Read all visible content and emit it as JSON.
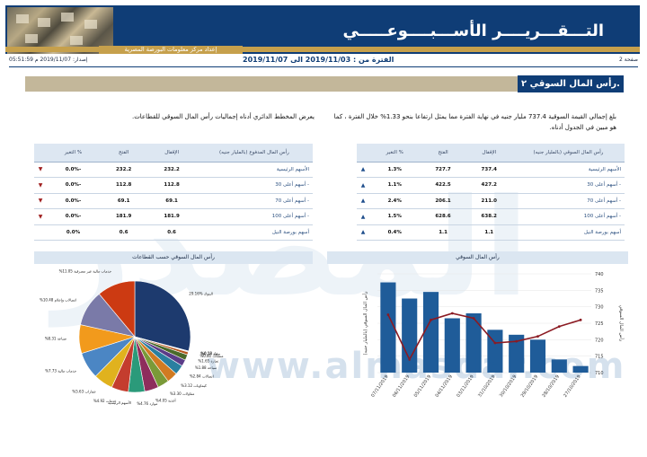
{
  "header": {
    "title": "التـــقـــريــــر الأســـبــــوعـــــي",
    "subtitle": "إعداد مركز معلومات البورصة المصرية"
  },
  "info": {
    "page": "صفحة 2",
    "period": "الفترة من : 2019/11/03 الى 2019/11/07",
    "issued": "إصدار: 2019/11/07 م 05:51:59"
  },
  "section": {
    "number": "٢.",
    "title": "رأس المال السوقي"
  },
  "paragraphs": {
    "market_cap": "بلغ إجمالي القيمة السوقية 737.4 مليار جنيه في نهاية الفترة مما يمثل ارتفاعا بنحو 1.33% خلال الفترة ، كما هو مبين في الجدول أدناه.",
    "paid_up": "يعرض المخطط الدائري أدناه إجماليات رأس المال السوقي للقطاعات."
  },
  "table_market": {
    "headers": [
      "رأس المال السوقي (بالمليار جنيه)",
      "الإقفال",
      "الفتح",
      "% التغير"
    ],
    "rows": [
      {
        "name": "الأسهم الرئيسية",
        "close": "737.4",
        "open": "727.7",
        "change": "1.3%",
        "dir": "up"
      },
      {
        "name": "- أسهم أعلى 30",
        "close": "427.2",
        "open": "422.5",
        "change": "1.1%",
        "dir": "up"
      },
      {
        "name": "- أسهم أعلى 70",
        "close": "211.0",
        "open": "206.1",
        "change": "2.4%",
        "dir": "up"
      },
      {
        "name": "- أسهم أعلى 100",
        "close": "638.2",
        "open": "628.6",
        "change": "1.5%",
        "dir": "up"
      },
      {
        "name": "أسهم بورصة النيل",
        "close": "1.1",
        "open": "1.1",
        "change": "0.4%",
        "dir": "up"
      }
    ]
  },
  "table_paid": {
    "headers": [
      "رأس المال المدفوع (بالمليار جنيه)",
      "الإقفال",
      "الفتح",
      "% التغير"
    ],
    "rows": [
      {
        "name": "الأسهم الرئيسية",
        "close": "232.2",
        "open": "232.2",
        "change": "-0.0%",
        "dir": "down"
      },
      {
        "name": "- أسهم أعلى 30",
        "close": "112.8",
        "open": "112.8",
        "change": "-0.0%",
        "dir": "down"
      },
      {
        "name": "- أسهم أعلى 70",
        "close": "69.1",
        "open": "69.1",
        "change": "-0.0%",
        "dir": "down"
      },
      {
        "name": "- أسهم أعلى 100",
        "close": "181.9",
        "open": "181.9",
        "change": "-0.0%",
        "dir": "down"
      },
      {
        "name": "أسهم بورصة النيل",
        "close": "0.6",
        "open": "0.6",
        "change": "0.0%",
        "dir": "none"
      }
    ]
  },
  "colors": {
    "navy": "#0f3d76",
    "gold": "#c6a04c",
    "beige": "#c3b79a",
    "bar": "#1f5c99",
    "line": "#8b1a22",
    "up": "#1f4e8c",
    "down": "#a02020"
  },
  "chart_titles": {
    "bar": "رأس المال السوقي",
    "pie": "رأس المال السوقي حسب القطاعات"
  },
  "chart_data": [
    {
      "type": "bar",
      "title": "رأس المال السوقي",
      "categories": [
        "07/11/2019",
        "06/11/2019",
        "05/11/2019",
        "04/11/2019",
        "03/11/2019",
        "31/10/2019",
        "30/10/2019",
        "29/10/2019",
        "28/10/2019",
        "27/10/2019"
      ],
      "series": [
        {
          "name": "bars",
          "values": [
            737.4,
            732.5,
            734.5,
            726.5,
            728.0,
            723.0,
            721.5,
            720.0,
            714.0,
            712.0
          ]
        },
        {
          "name": "line",
          "values": [
            727.6,
            714.0,
            726.0,
            728.0,
            726.5,
            719.0,
            719.5,
            721.0,
            724.0,
            726.0
          ]
        }
      ],
      "ylim_left": [
        710,
        740
      ],
      "ylim_right": [
        710,
        740
      ],
      "yticks_right": [
        "710",
        "715",
        "720",
        "725",
        "730",
        "735",
        "740"
      ],
      "ylabel_left": "رأس المال السوقي (بالمليار جنيه)",
      "ylabel_right": "رأس المال السوقي"
    },
    {
      "type": "pie",
      "title": "رأس المال السوقي حسب القطاعات",
      "slices": [
        {
          "label": "البنوك %29.16",
          "value": 29.16,
          "color": "#1d3a6e"
        },
        {
          "label": "%0.13 غاز",
          "value": 0.13,
          "color": "#6a7f1f"
        },
        {
          "label": "%0.18 صحة",
          "value": 0.18,
          "color": "#2f6b9a"
        },
        {
          "label": "%0.81 منتجات",
          "value": 0.81,
          "color": "#b5561e"
        },
        {
          "label": "%1.65 تجارة",
          "value": 1.65,
          "color": "#4a6a2a"
        },
        {
          "label": "%1.88 سياحة",
          "value": 1.88,
          "color": "#5b3c88"
        },
        {
          "label": "%2.84 اتصالات",
          "value": 2.84,
          "color": "#2a7fa0"
        },
        {
          "label": "%3.12 كيماويات",
          "value": 3.12,
          "color": "#d17b22"
        },
        {
          "label": "%3.30 مقاولات",
          "value": 3.3,
          "color": "#7a9a38"
        },
        {
          "label": "%4.05 أغذية",
          "value": 4.05,
          "color": "#8e2d5c"
        },
        {
          "label": "%4.76 موارد",
          "value": 4.76,
          "color": "#2b9a7a"
        },
        {
          "label": "%4.92 خدمات",
          "value": 4.92,
          "color": "#c43d2e"
        },
        {
          "label": "%5.63 عقارات",
          "value": 5.63,
          "color": "#e0b21e"
        },
        {
          "label": "%7.73 خدمات مالية",
          "value": 7.73,
          "color": "#4b86c4"
        },
        {
          "label": "%8.31 صناعة",
          "value": 8.31,
          "color": "#f29a1c"
        },
        {
          "label": "%10.48 اتصالات وإعلام",
          "value": 10.48,
          "color": "#7a7aa8"
        },
        {
          "label": "%11.05 خدمات مالية غير مصرفية",
          "value": 11.05,
          "color": "#cc3a12"
        }
      ]
    }
  ],
  "legend_label": "الأسهم الرئيسية",
  "watermark": {
    "big": "المصدر",
    "url": "www.almasdar.com"
  }
}
